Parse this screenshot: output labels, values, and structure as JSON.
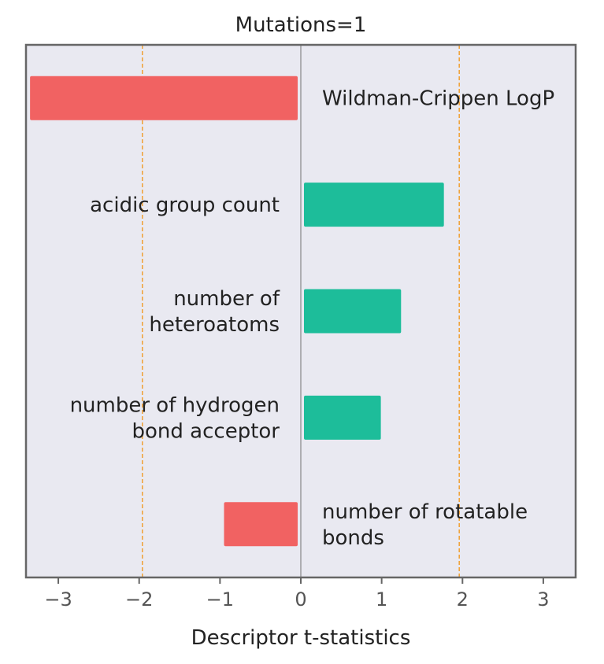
{
  "chart_data": {
    "type": "bar",
    "orientation": "horizontal",
    "title": "Mutations=1",
    "xlabel": "Descriptor t-statistics",
    "ylabel": "",
    "xlim": [
      -3.4,
      3.4
    ],
    "xticks": [
      -3,
      -2,
      -1,
      0,
      1,
      2,
      3
    ],
    "xtick_labels": [
      "−3",
      "−2",
      "−1",
      "0",
      "1",
      "2",
      "3"
    ],
    "threshold_lines": [
      -1.96,
      1.96
    ],
    "grid": false,
    "categories": [
      "Wildman-Crippen LogP",
      "acidic group count",
      "number of heteroatoms",
      "number of hydrogen bond acceptor",
      "number of rotatable bonds"
    ],
    "label_lines": [
      [
        "Wildman-Crippen LogP"
      ],
      [
        "acidic group count"
      ],
      [
        "number of",
        "heteroatoms"
      ],
      [
        "number of hydrogen",
        "bond acceptor"
      ],
      [
        "number of rotatable",
        "bonds"
      ]
    ],
    "values": [
      -3.35,
      1.77,
      1.24,
      0.99,
      -0.95
    ],
    "colors": {
      "positive": "#1dbd9a",
      "negative": "#f16262",
      "threshold": "#f0a032",
      "background": "#e9e9f1",
      "frame": "#666666",
      "zero_line": "#888888"
    }
  }
}
